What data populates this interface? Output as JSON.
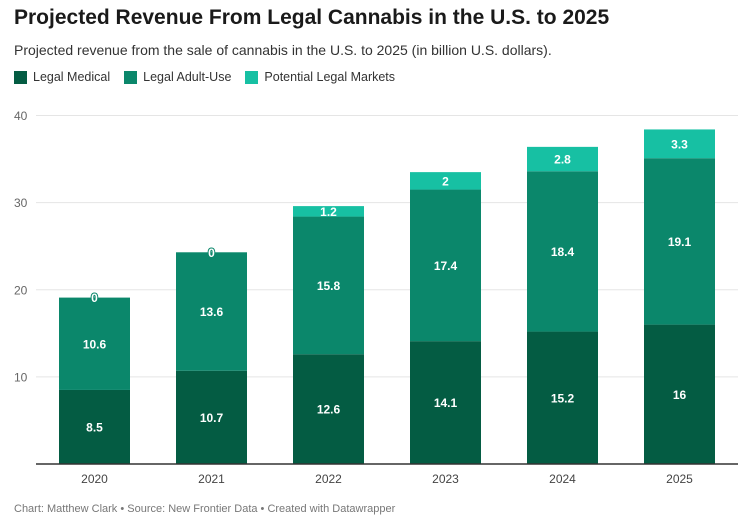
{
  "colors": {
    "medical": "#045c43",
    "adult_use": "#0b876b",
    "potential": "#17c0a3",
    "grid": "#e5e5e5",
    "axis": "#333333"
  },
  "chart_data": {
    "type": "bar",
    "stacked": true,
    "title": "Projected Revenue From Legal Cannabis in the U.S. to 2025",
    "subtitle": "Projected revenue from the sale of cannabis in the U.S. to 2025 (in billion U.S. dollars).",
    "categories": [
      "2020",
      "2021",
      "2022",
      "2023",
      "2024",
      "2025"
    ],
    "series": [
      {
        "name": "Legal Medical",
        "values": [
          8.5,
          10.7,
          12.6,
          14.1,
          15.2,
          16
        ],
        "color": "#045c43"
      },
      {
        "name": "Legal Adult-Use",
        "values": [
          10.6,
          13.6,
          15.8,
          17.4,
          18.4,
          19.1
        ],
        "color": "#0b876b"
      },
      {
        "name": "Potential Legal Markets",
        "values": [
          0,
          0,
          1.2,
          2,
          2.8,
          3.3
        ],
        "color": "#17c0a3"
      }
    ],
    "ylim": [
      0,
      40
    ],
    "yticks": [
      10,
      20,
      30,
      40
    ],
    "grid": true,
    "legend": "top-left",
    "xlabel": "",
    "ylabel": ""
  },
  "footer": "Chart: Matthew Clark • Source: New Frontier Data • Created with Datawrapper"
}
